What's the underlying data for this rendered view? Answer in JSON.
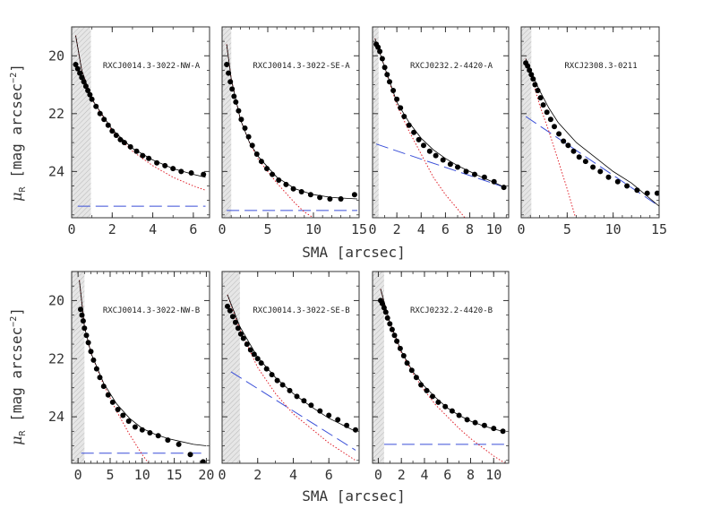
{
  "figure": {
    "ylabel": "μR [mag arcsec⁻²]",
    "ylabel_main": "μ",
    "ylabel_sub": "R",
    "ylabel_rest": " [mag arcsec",
    "ylabel_sup": "−2",
    "ylabel_close": "]",
    "xlabel": "SMA [arcsec]",
    "colors": {
      "data": "#000000",
      "sersic": "#e0202a",
      "exponential": "#3a4fd8",
      "total": "#000000",
      "psf_shade": "#cfcfcf"
    }
  },
  "chart_data": [
    {
      "type": "scatter",
      "title": "RXCJ0014.3-3022-NW-A",
      "xlim": [
        0,
        6.8
      ],
      "ylim": [
        25.6,
        19
      ],
      "xticks": [
        0,
        2,
        4,
        6
      ],
      "xtick_labels": [
        "0",
        "2",
        "4",
        "6"
      ],
      "yticks": [
        20,
        22,
        24
      ],
      "ytick_labels": [
        "20",
        "22",
        "24"
      ],
      "psf_region": [
        0,
        0.95
      ],
      "xlabel": "",
      "ylabel": "",
      "points": {
        "x": [
          0.2,
          0.3,
          0.4,
          0.5,
          0.6,
          0.7,
          0.8,
          0.9,
          1.0,
          1.2,
          1.4,
          1.6,
          1.8,
          2.0,
          2.2,
          2.4,
          2.6,
          2.9,
          3.2,
          3.5,
          3.8,
          4.2,
          4.6,
          5.0,
          5.4,
          5.9,
          6.5
        ],
        "y": [
          20.3,
          20.45,
          20.6,
          20.75,
          20.9,
          21.05,
          21.2,
          21.35,
          21.5,
          21.75,
          22.0,
          22.2,
          22.4,
          22.6,
          22.75,
          22.9,
          23.0,
          23.15,
          23.3,
          23.45,
          23.55,
          23.7,
          23.8,
          23.9,
          24.0,
          24.05,
          24.1
        ]
      },
      "sersic": {
        "x": [
          0.2,
          0.5,
          1,
          2,
          3,
          4,
          5,
          6,
          6.6
        ],
        "y": [
          19.3,
          20.5,
          21.5,
          22.6,
          23.3,
          23.8,
          24.2,
          24.5,
          24.65
        ]
      },
      "exponential": {
        "x": [
          0.3,
          6.6
        ],
        "y": [
          25.2,
          25.2
        ]
      },
      "total": {
        "x": [
          0.2,
          0.5,
          1,
          2,
          3,
          4,
          5,
          6,
          6.6
        ],
        "y": [
          19.3,
          20.5,
          21.5,
          22.55,
          23.2,
          23.6,
          23.9,
          24.1,
          24.2
        ]
      }
    },
    {
      "type": "scatter",
      "title": "RXCJ0014.3-3022-SE-A",
      "xlim": [
        0,
        15
      ],
      "ylim": [
        25.6,
        19
      ],
      "xticks": [
        0,
        5,
        10,
        15
      ],
      "xtick_labels": [
        "0",
        "5",
        "10",
        "15"
      ],
      "yticks": [
        20,
        22,
        24
      ],
      "ytick_labels": [
        "",
        "",
        ""
      ],
      "psf_region": [
        0,
        1.0
      ],
      "xlabel": "",
      "ylabel": "",
      "points": {
        "x": [
          0.5,
          0.7,
          0.9,
          1.1,
          1.3,
          1.5,
          1.8,
          2.1,
          2.5,
          2.9,
          3.3,
          3.8,
          4.3,
          4.9,
          5.5,
          6.2,
          7.0,
          7.8,
          8.7,
          9.7,
          10.7,
          11.8,
          13.0,
          14.5
        ],
        "y": [
          20.3,
          20.6,
          20.9,
          21.15,
          21.4,
          21.6,
          21.9,
          22.2,
          22.5,
          22.8,
          23.1,
          23.4,
          23.65,
          23.9,
          24.1,
          24.3,
          24.45,
          24.6,
          24.7,
          24.8,
          24.9,
          24.95,
          24.95,
          24.8
        ]
      },
      "sersic": {
        "x": [
          0.5,
          1,
          2,
          3,
          4,
          5,
          6,
          7,
          8,
          9,
          10,
          11
        ],
        "y": [
          19.6,
          20.8,
          22.2,
          23.0,
          23.6,
          24.0,
          24.4,
          24.75,
          25.1,
          25.4,
          25.6,
          25.8
        ]
      },
      "exponential": {
        "x": [
          0.5,
          14.8
        ],
        "y": [
          25.35,
          25.35
        ]
      },
      "total": {
        "x": [
          0.5,
          1,
          2,
          3,
          4,
          6,
          8,
          10,
          12,
          14.8
        ],
        "y": [
          19.6,
          20.8,
          22.2,
          23.0,
          23.5,
          24.2,
          24.6,
          24.8,
          24.9,
          24.95
        ]
      }
    },
    {
      "type": "scatter",
      "title": "RXCJ0232.2-4420-A",
      "xlim": [
        0,
        11.2
      ],
      "ylim": [
        25.6,
        19
      ],
      "xticks": [
        0,
        2,
        4,
        6,
        8,
        10
      ],
      "xtick_labels": [
        "0",
        "2",
        "4",
        "6",
        "8",
        "10"
      ],
      "yticks": [
        20,
        22,
        24
      ],
      "ytick_labels": [
        "",
        "",
        ""
      ],
      "psf_region": [
        0,
        0.5
      ],
      "xlabel": "",
      "ylabel": "",
      "points": {
        "x": [
          0.3,
          0.45,
          0.6,
          0.8,
          1.0,
          1.2,
          1.4,
          1.7,
          2.0,
          2.3,
          2.6,
          3.0,
          3.4,
          3.8,
          4.2,
          4.7,
          5.2,
          5.8,
          6.4,
          7.0,
          7.7,
          8.4,
          9.2,
          10.0,
          10.8
        ],
        "y": [
          19.6,
          19.7,
          19.85,
          20.1,
          20.4,
          20.65,
          20.9,
          21.2,
          21.5,
          21.8,
          22.1,
          22.4,
          22.65,
          22.9,
          23.1,
          23.3,
          23.45,
          23.6,
          23.75,
          23.85,
          24.0,
          24.1,
          24.2,
          24.35,
          24.55
        ]
      },
      "sersic": {
        "x": [
          0.2,
          1,
          2,
          3,
          4,
          5,
          6,
          7,
          8
        ],
        "y": [
          19.4,
          20.4,
          21.7,
          22.6,
          23.4,
          24.2,
          24.8,
          25.3,
          25.8
        ]
      },
      "exponential": {
        "x": [
          0.3,
          10.9
        ],
        "y": [
          23.05,
          24.55
        ]
      },
      "total": {
        "x": [
          0.2,
          1,
          2,
          3,
          4,
          5,
          6,
          7,
          8,
          9,
          10,
          10.9
        ],
        "y": [
          19.4,
          20.4,
          21.6,
          22.3,
          22.85,
          23.25,
          23.55,
          23.8,
          24.0,
          24.2,
          24.38,
          24.55
        ]
      }
    },
    {
      "type": "scatter",
      "title": "RXCJ2308.3-0211",
      "xlim": [
        0,
        15
      ],
      "ylim": [
        25.6,
        19
      ],
      "xticks": [
        0,
        5,
        10,
        15
      ],
      "xtick_labels": [
        "0",
        "5",
        "10",
        "15"
      ],
      "yticks": [
        20,
        22,
        24
      ],
      "ytick_labels": [
        "",
        "",
        ""
      ],
      "psf_region": [
        0,
        1.1
      ],
      "xlabel": "",
      "ylabel": "",
      "points": {
        "x": [
          0.5,
          0.7,
          0.9,
          1.1,
          1.3,
          1.5,
          1.8,
          2.1,
          2.4,
          2.8,
          3.2,
          3.6,
          4.1,
          4.6,
          5.1,
          5.7,
          6.3,
          7.0,
          7.8,
          8.6,
          9.5,
          10.5,
          11.5,
          12.6,
          13.7,
          14.8
        ],
        "y": [
          20.25,
          20.35,
          20.5,
          20.65,
          20.8,
          21.0,
          21.2,
          21.45,
          21.7,
          21.95,
          22.2,
          22.45,
          22.7,
          22.95,
          23.1,
          23.3,
          23.5,
          23.65,
          23.85,
          24.0,
          24.2,
          24.35,
          24.5,
          24.65,
          24.75,
          24.75
        ]
      },
      "sersic": {
        "x": [
          0.5,
          1,
          2,
          3,
          4,
          5,
          6
        ],
        "y": [
          20.1,
          20.6,
          21.7,
          22.6,
          23.6,
          24.6,
          25.7
        ]
      },
      "exponential": {
        "x": [
          0.5,
          15
        ],
        "y": [
          22.1,
          25.2
        ]
      },
      "total": {
        "x": [
          0.5,
          1,
          2,
          3,
          4,
          6,
          8,
          10,
          12,
          15
        ],
        "y": [
          20.1,
          20.5,
          21.2,
          21.8,
          22.3,
          23.0,
          23.5,
          24.0,
          24.4,
          25.2
        ]
      }
    },
    {
      "type": "scatter",
      "title": "RXCJ0014.3-3022-NW-B",
      "xlim": [
        -1,
        20.5
      ],
      "ylim": [
        25.6,
        19
      ],
      "xticks": [
        0,
        5,
        10,
        15,
        20
      ],
      "xtick_labels": [
        "0",
        "5",
        "10",
        "15",
        "20"
      ],
      "yticks": [
        20,
        22,
        24
      ],
      "ytick_labels": [
        "20",
        "22",
        "24"
      ],
      "psf_region": [
        -1,
        1.0
      ],
      "xlabel": "",
      "ylabel": "",
      "points": {
        "x": [
          0.4,
          0.6,
          0.8,
          1.0,
          1.3,
          1.6,
          2.0,
          2.4,
          2.9,
          3.4,
          4.0,
          4.7,
          5.4,
          6.2,
          7.0,
          7.9,
          8.9,
          10.0,
          11.2,
          12.5,
          14.0,
          15.7,
          17.5,
          19.5
        ],
        "y": [
          20.3,
          20.5,
          20.7,
          20.95,
          21.2,
          21.45,
          21.75,
          22.05,
          22.35,
          22.65,
          22.95,
          23.25,
          23.5,
          23.75,
          23.95,
          24.15,
          24.35,
          24.45,
          24.55,
          24.65,
          24.8,
          24.95,
          25.3,
          25.55
        ]
      },
      "sersic": {
        "x": [
          0.2,
          1,
          2,
          4,
          6,
          8,
          10,
          12
        ],
        "y": [
          19.3,
          20.9,
          21.8,
          22.9,
          23.8,
          24.6,
          25.3,
          25.9
        ]
      },
      "exponential": {
        "x": [
          0.5,
          20
        ],
        "y": [
          25.25,
          25.25
        ]
      },
      "total": {
        "x": [
          0.2,
          1,
          2,
          4,
          6,
          8,
          10,
          12,
          14,
          16,
          18,
          20
        ],
        "y": [
          19.3,
          20.9,
          21.8,
          22.85,
          23.55,
          24.05,
          24.4,
          24.6,
          24.75,
          24.85,
          24.95,
          25.0
        ]
      }
    },
    {
      "type": "scatter",
      "title": "RXCJ0014.3-3022-SE-B",
      "xlim": [
        0,
        7.7
      ],
      "ylim": [
        25.6,
        19
      ],
      "xticks": [
        0,
        2,
        4,
        6
      ],
      "xtick_labels": [
        "0",
        "2",
        "4",
        "6"
      ],
      "yticks": [
        20,
        22,
        24
      ],
      "ytick_labels": [
        "",
        "",
        ""
      ],
      "psf_region": [
        0,
        1.0
      ],
      "xlabel": "",
      "ylabel": "",
      "points": {
        "x": [
          0.3,
          0.45,
          0.6,
          0.75,
          0.9,
          1.05,
          1.2,
          1.4,
          1.6,
          1.8,
          2.0,
          2.2,
          2.5,
          2.8,
          3.1,
          3.4,
          3.8,
          4.2,
          4.6,
          5.0,
          5.5,
          6.0,
          6.5,
          7.0,
          7.5
        ],
        "y": [
          20.2,
          20.35,
          20.55,
          20.75,
          20.95,
          21.15,
          21.3,
          21.5,
          21.7,
          21.85,
          22.0,
          22.15,
          22.35,
          22.55,
          22.75,
          22.9,
          23.1,
          23.3,
          23.45,
          23.6,
          23.8,
          23.95,
          24.1,
          24.3,
          24.45
        ]
      },
      "sersic": {
        "x": [
          0.3,
          1,
          2,
          3,
          4,
          5,
          6,
          7,
          7.5
        ],
        "y": [
          19.8,
          21.0,
          22.3,
          23.2,
          23.9,
          24.4,
          24.9,
          25.3,
          25.5
        ]
      },
      "exponential": {
        "x": [
          0.5,
          7.5
        ],
        "y": [
          22.45,
          25.15
        ]
      },
      "total": {
        "x": [
          0.3,
          1,
          2,
          3,
          4,
          5,
          6,
          7,
          7.5
        ],
        "y": [
          19.8,
          20.9,
          21.95,
          22.65,
          23.2,
          23.65,
          24.05,
          24.35,
          24.5
        ]
      }
    },
    {
      "type": "scatter",
      "title": "RXCJ0232.2-4420-B",
      "xlim": [
        -0.5,
        11.3
      ],
      "ylim": [
        25.6,
        19
      ],
      "xticks": [
        0,
        2,
        4,
        6,
        8,
        10
      ],
      "xtick_labels": [
        "0",
        "2",
        "4",
        "6",
        "8",
        "10"
      ],
      "yticks": [
        20,
        22,
        24
      ],
      "ytick_labels": [
        "",
        "",
        ""
      ],
      "psf_region": [
        -0.5,
        0.5
      ],
      "xlabel": "",
      "ylabel": "",
      "points": {
        "x": [
          0.2,
          0.35,
          0.5,
          0.65,
          0.8,
          1.0,
          1.2,
          1.4,
          1.6,
          1.9,
          2.2,
          2.5,
          2.9,
          3.3,
          3.7,
          4.2,
          4.7,
          5.2,
          5.8,
          6.4,
          7.0,
          7.7,
          8.4,
          9.2,
          10.0,
          10.8
        ],
        "y": [
          20.0,
          20.1,
          20.25,
          20.4,
          20.6,
          20.8,
          21.0,
          21.2,
          21.4,
          21.65,
          21.9,
          22.15,
          22.4,
          22.65,
          22.9,
          23.1,
          23.3,
          23.5,
          23.65,
          23.8,
          23.95,
          24.1,
          24.2,
          24.3,
          24.4,
          24.5
        ]
      },
      "sersic": {
        "x": [
          0.2,
          1,
          2,
          3,
          4,
          5,
          6,
          7,
          8,
          9,
          10,
          11
        ],
        "y": [
          19.6,
          20.8,
          21.8,
          22.5,
          23.1,
          23.6,
          24.0,
          24.4,
          24.75,
          25.05,
          25.35,
          25.6
        ]
      },
      "exponential": {
        "x": [
          0.5,
          11
        ],
        "y": [
          24.95,
          24.95
        ]
      },
      "total": {
        "x": [
          0.2,
          1,
          2,
          3,
          4,
          5,
          6,
          7,
          8,
          9,
          10,
          11
        ],
        "y": [
          19.6,
          20.75,
          21.75,
          22.45,
          22.95,
          23.35,
          23.7,
          23.95,
          24.15,
          24.3,
          24.42,
          24.52
        ]
      }
    }
  ]
}
